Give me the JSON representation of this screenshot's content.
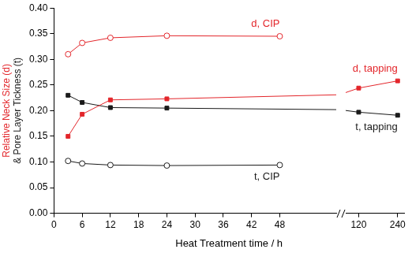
{
  "chart_data": [
    {
      "type": "line",
      "xlabel": "Heat Treatment time / h",
      "ylabel": [
        "Relative Neck Size (d)",
        "& Pore Layer Tickness (t)"
      ],
      "xlim": [
        0,
        60
      ],
      "xticks": [
        0,
        6,
        12,
        18,
        24,
        30,
        36,
        42,
        48
      ],
      "ylim": [
        0,
        0.4
      ],
      "yticks": [
        {
          "value": 0,
          "label": "0.00"
        },
        {
          "value": 0.05,
          "label": "0.05"
        },
        {
          "value": 0.1,
          "label": "0.10"
        },
        {
          "value": 0.15,
          "label": "0.15"
        },
        {
          "value": 0.2,
          "label": "0.20"
        },
        {
          "value": 0.25,
          "label": "0.25"
        },
        {
          "value": 0.3,
          "label": "0.30"
        },
        {
          "value": 0.35,
          "label": "0.35"
        },
        {
          "value": 0.4,
          "label": "0.40"
        }
      ],
      "grid": false,
      "series": [
        {
          "name": "d, CIP",
          "color": "#e3262b",
          "marker": "circle_open",
          "line_style": "solid",
          "x": [
            3,
            6,
            12,
            24,
            48
          ],
          "values": [
            0.31,
            0.332,
            0.342,
            0.346,
            0.345
          ]
        },
        {
          "name": "d, tapping",
          "color": "#e3262b",
          "marker": "square",
          "line_style": "solid",
          "x": [
            3,
            6,
            12,
            24,
            120,
            240
          ],
          "values": [
            0.15,
            0.193,
            0.221,
            0.223,
            0.244,
            0.258
          ]
        },
        {
          "name": "t, tapping",
          "color": "#1a1a1a",
          "marker": "square",
          "line_style": "solid",
          "x": [
            3,
            6,
            12,
            24,
            120,
            240
          ],
          "values": [
            0.23,
            0.216,
            0.206,
            0.205,
            0.197,
            0.191
          ]
        },
        {
          "name": "t, CIP",
          "color": "#1a1a1a",
          "marker": "circle_open",
          "line_style": "solid",
          "x": [
            3,
            6,
            12,
            24,
            48
          ],
          "values": [
            0.102,
            0.097,
            0.094,
            0.093,
            0.094
          ]
        }
      ]
    },
    {
      "type": "line",
      "xlim": [
        80,
        260
      ],
      "xticks": [
        120,
        240
      ],
      "ylim": [
        0,
        0.4
      ],
      "yticks": [
        {
          "value": 0,
          "label": "0.00"
        },
        {
          "value": 0.05,
          "label": "0.05"
        },
        {
          "value": 0.1,
          "label": "0.10"
        },
        {
          "value": 0.15,
          "label": "0.15"
        },
        {
          "value": 0.2,
          "label": "0.20"
        },
        {
          "value": 0.25,
          "label": "0.25"
        },
        {
          "value": 0.3,
          "label": "0.30"
        },
        {
          "value": 0.35,
          "label": "0.35"
        },
        {
          "value": 0.4,
          "label": "0.40"
        }
      ],
      "grid": false,
      "series": [
        {
          "name": "d, tapping",
          "color": "#e3262b",
          "marker": "square",
          "line_style": "solid",
          "x": [
            3,
            6,
            12,
            24,
            120,
            240
          ],
          "values": [
            0.15,
            0.193,
            0.221,
            0.223,
            0.244,
            0.258
          ]
        },
        {
          "name": "t, tapping",
          "color": "#1a1a1a",
          "marker": "square",
          "line_style": "solid",
          "x": [
            3,
            6,
            12,
            24,
            120,
            240
          ],
          "values": [
            0.23,
            0.216,
            0.206,
            0.205,
            0.197,
            0.191
          ]
        }
      ]
    }
  ]
}
